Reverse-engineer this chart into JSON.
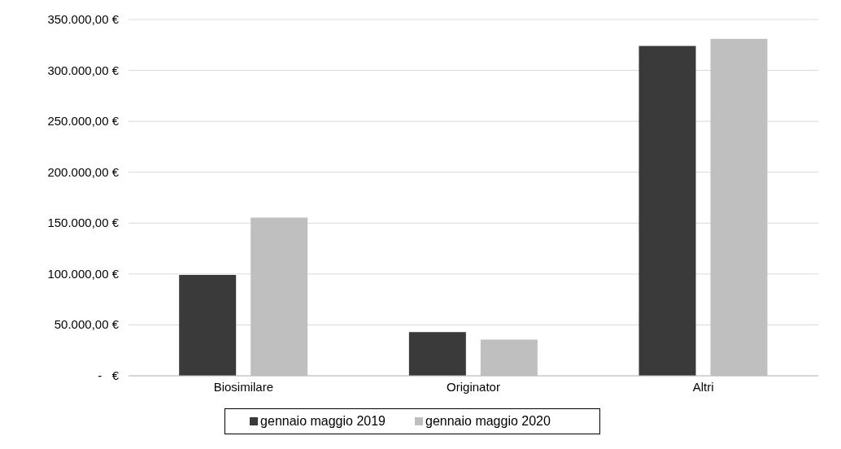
{
  "chart_data": {
    "type": "bar",
    "categories": [
      "Biosimilare",
      "Originator",
      "Altri"
    ],
    "series": [
      {
        "name": "gennaio maggio 2019",
        "color": "#3a3a3a",
        "values": [
          99000,
          43000,
          324000
        ]
      },
      {
        "name": "gennaio maggio 2020",
        "color": "#bfbfbf",
        "values": [
          155500,
          35500,
          331000
        ]
      }
    ],
    "ylim": [
      0,
      350000
    ],
    "yticks": [
      {
        "value": 0,
        "label": "-   €"
      },
      {
        "value": 50000,
        "label": "50.000,00 €"
      },
      {
        "value": 100000,
        "label": "100.000,00 €"
      },
      {
        "value": 150000,
        "label": "150.000,00 €"
      },
      {
        "value": 200000,
        "label": "200.000,00 €"
      },
      {
        "value": 250000,
        "label": "250.000,00 €"
      },
      {
        "value": 300000,
        "label": "300.000,00 €"
      },
      {
        "value": 350000,
        "label": "350.000,00 €"
      }
    ],
    "grid": "y",
    "legend": "bottom"
  }
}
